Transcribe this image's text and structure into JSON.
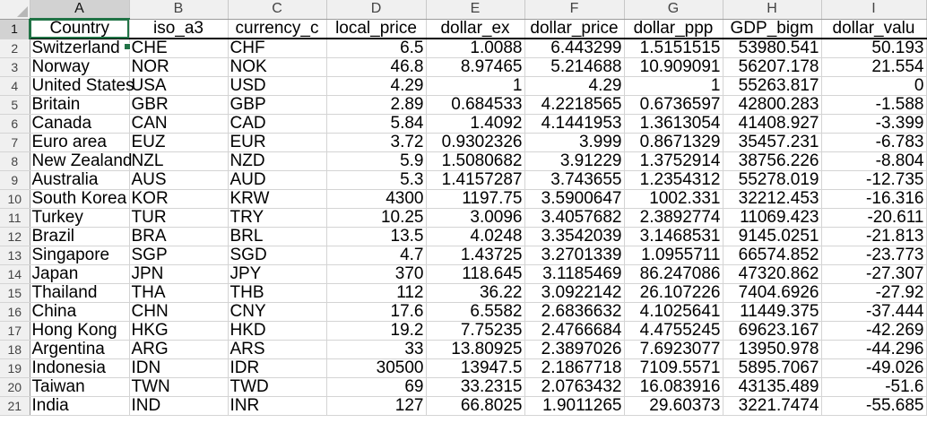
{
  "sheet": {
    "columns": [
      "A",
      "B",
      "C",
      "D",
      "E",
      "F",
      "G",
      "H",
      "I"
    ],
    "selected_column": "A",
    "selected_row": "1",
    "header_row": [
      "Country",
      "iso_a3",
      "currency_c",
      "local_price",
      "dollar_ex",
      "dollar_price",
      "dollar_ppp",
      "GDP_bigm",
      "dollar_valu"
    ],
    "rows": [
      {
        "n": "2",
        "cells": [
          "Switzerland",
          "CHE",
          "CHF",
          "6.5",
          "1.0088",
          "6.443299",
          "1.5151515",
          "53980.541",
          "50.193"
        ]
      },
      {
        "n": "3",
        "cells": [
          "Norway",
          "NOR",
          "NOK",
          "46.8",
          "8.97465",
          "5.214688",
          "10.909091",
          "56207.178",
          "21.554"
        ]
      },
      {
        "n": "4",
        "cells": [
          "United States",
          "USA",
          "USD",
          "4.29",
          "1",
          "4.29",
          "1",
          "55263.817",
          "0"
        ]
      },
      {
        "n": "5",
        "cells": [
          "Britain",
          "GBR",
          "GBP",
          "2.89",
          "0.684533",
          "4.2218565",
          "0.6736597",
          "42800.283",
          "-1.588"
        ]
      },
      {
        "n": "6",
        "cells": [
          "Canada",
          "CAN",
          "CAD",
          "5.84",
          "1.4092",
          "4.1441953",
          "1.3613054",
          "41408.927",
          "-3.399"
        ]
      },
      {
        "n": "7",
        "cells": [
          "Euro area",
          "EUZ",
          "EUR",
          "3.72",
          "0.9302326",
          "3.999",
          "0.8671329",
          "35457.231",
          "-6.783"
        ]
      },
      {
        "n": "8",
        "cells": [
          "New Zealand",
          "NZL",
          "NZD",
          "5.9",
          "1.5080682",
          "3.91229",
          "1.3752914",
          "38756.226",
          "-8.804"
        ]
      },
      {
        "n": "9",
        "cells": [
          "Australia",
          "AUS",
          "AUD",
          "5.3",
          "1.4157287",
          "3.743655",
          "1.2354312",
          "55278.019",
          "-12.735"
        ]
      },
      {
        "n": "10",
        "cells": [
          "South Korea",
          "KOR",
          "KRW",
          "4300",
          "1197.75",
          "3.5900647",
          "1002.331",
          "32212.453",
          "-16.316"
        ]
      },
      {
        "n": "11",
        "cells": [
          "Turkey",
          "TUR",
          "TRY",
          "10.25",
          "3.0096",
          "3.4057682",
          "2.3892774",
          "11069.423",
          "-20.611"
        ]
      },
      {
        "n": "12",
        "cells": [
          "Brazil",
          "BRA",
          "BRL",
          "13.5",
          "4.0248",
          "3.3542039",
          "3.1468531",
          "9145.0251",
          "-21.813"
        ]
      },
      {
        "n": "13",
        "cells": [
          "Singapore",
          "SGP",
          "SGD",
          "4.7",
          "1.43725",
          "3.2701339",
          "1.0955711",
          "66574.852",
          "-23.773"
        ]
      },
      {
        "n": "14",
        "cells": [
          "Japan",
          "JPN",
          "JPY",
          "370",
          "118.645",
          "3.1185469",
          "86.247086",
          "47320.862",
          "-27.307"
        ]
      },
      {
        "n": "15",
        "cells": [
          "Thailand",
          "THA",
          "THB",
          "112",
          "36.22",
          "3.0922142",
          "26.107226",
          "7404.6926",
          "-27.92"
        ]
      },
      {
        "n": "16",
        "cells": [
          "China",
          "CHN",
          "CNY",
          "17.6",
          "6.5582",
          "2.6836632",
          "4.1025641",
          "11449.375",
          "-37.444"
        ]
      },
      {
        "n": "17",
        "cells": [
          "Hong Kong",
          "HKG",
          "HKD",
          "19.2",
          "7.75235",
          "2.4766684",
          "4.4755245",
          "69623.167",
          "-42.269"
        ]
      },
      {
        "n": "18",
        "cells": [
          "Argentina",
          "ARG",
          "ARS",
          "33",
          "13.80925",
          "2.3897026",
          "7.6923077",
          "13950.978",
          "-44.296"
        ]
      },
      {
        "n": "19",
        "cells": [
          "Indonesia",
          "IDN",
          "IDR",
          "30500",
          "13947.5",
          "2.1867718",
          "7109.5571",
          "5895.7067",
          "-49.026"
        ]
      },
      {
        "n": "20",
        "cells": [
          "Taiwan",
          "TWN",
          "TWD",
          "69",
          "33.2315",
          "2.0763432",
          "16.083916",
          "43135.489",
          "-51.6"
        ]
      },
      {
        "n": "21",
        "cells": [
          "India",
          "IND",
          "INR",
          "127",
          "66.8025",
          "1.9011265",
          "29.60373",
          "3221.7474",
          "-55.685"
        ]
      }
    ]
  },
  "colors": {
    "selection": "#217346",
    "header_bg": "#f0f0f0",
    "selected_header_bg": "#d2d2d2",
    "gridline": "#d4d4d4"
  }
}
